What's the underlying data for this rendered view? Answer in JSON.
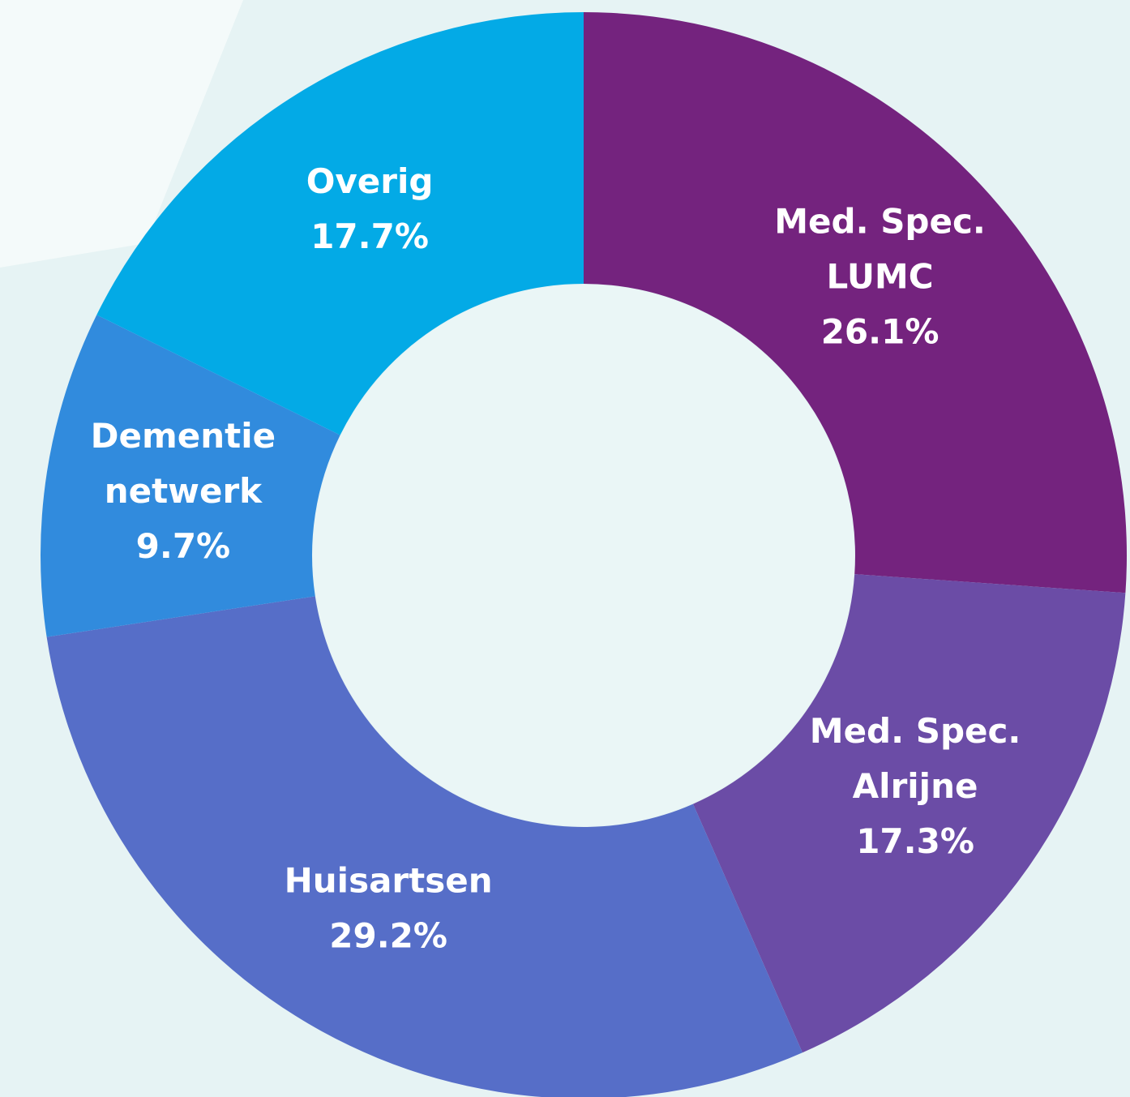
{
  "chart_data": {
    "type": "donut",
    "categories": [
      [
        "Med. Spec.",
        "LUMC"
      ],
      [
        "Med. Spec.",
        "Alrijne"
      ],
      [
        "Huisartsen"
      ],
      [
        "Dementie",
        "netwerk"
      ],
      [
        "Overig"
      ]
    ],
    "values": [
      26.1,
      17.3,
      29.2,
      9.7,
      17.7
    ],
    "value_labels": [
      "26.1%",
      "17.3%",
      "29.2%",
      "9.7%",
      "17.7%"
    ],
    "colors": [
      "#74237e",
      "#6b4ca6",
      "#566ec8",
      "#318bdd",
      "#03aae6"
    ]
  }
}
